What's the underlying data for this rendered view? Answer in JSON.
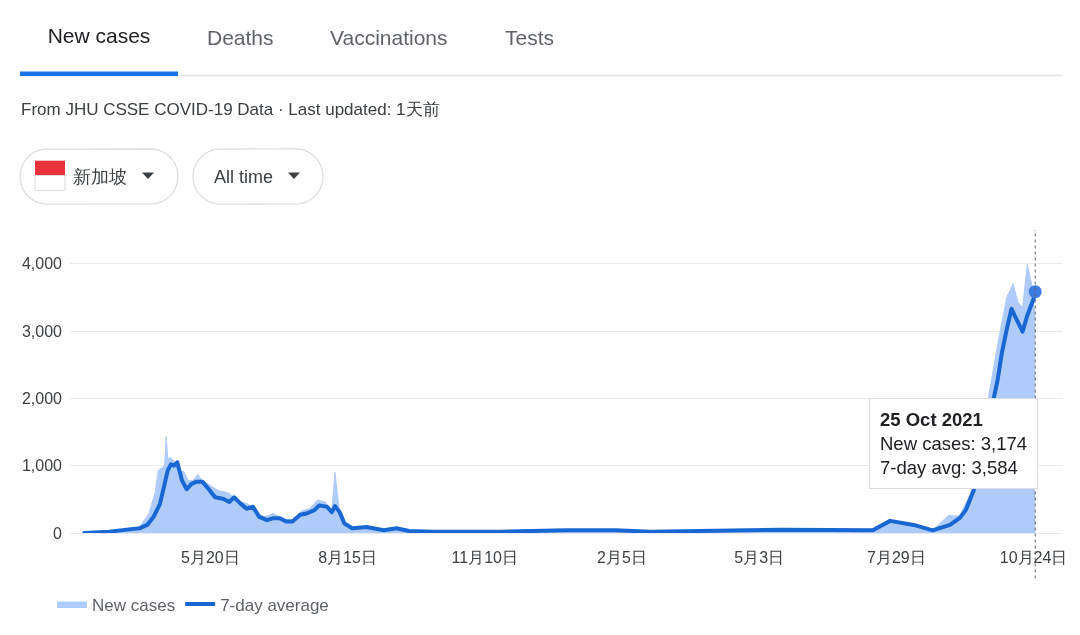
{
  "chart_data": {
    "type": "line",
    "title": "New cases",
    "subtitle": "From JHU CSSE COVID-19 Data · Last updated: 1天前",
    "annotations": [
      "Deaths",
      "Vaccinations",
      "Tests",
      "新加坡",
      "All time",
      "25 Oct 2021\nNew cases: 3,174\n7-day avg: 3,584"
    ],
    "series": [
      {
        "name": "New cases",
        "type": "area",
        "color": "#aecbfa",
        "x": [
          "2020-03-01",
          "2020-03-28",
          "2020-04-05",
          "2020-04-11",
          "2020-04-15",
          "2020-04-17",
          "2020-04-21",
          "2020-04-22",
          "2020-04-23",
          "2020-04-25",
          "2020-04-27",
          "2020-04-30",
          "2020-05-03",
          "2020-05-06",
          "2020-05-09",
          "2020-05-12",
          "2020-05-15",
          "2020-05-25",
          "2020-05-31",
          "2020-06-08",
          "2020-06-13",
          "2020-06-18",
          "2020-06-23",
          "2020-06-29",
          "2020-07-05",
          "2020-07-11",
          "2020-07-17",
          "2020-07-22",
          "2020-07-27",
          "2020-08-01",
          "2020-08-05",
          "2020-08-07",
          "2020-08-10",
          "2020-08-13",
          "2020-08-18",
          "2020-09-10",
          "2020-10-15",
          "2021-01-01",
          "2021-03-01",
          "2021-05-18",
          "2021-07-14",
          "2021-07-25",
          "2021-08-09",
          "2021-08-21",
          "2021-08-31",
          "2021-09-07",
          "2021-09-15",
          "2021-10-02",
          "2021-10-07",
          "2021-10-11",
          "2021-10-14",
          "2021-10-17",
          "2021-10-20",
          "2021-10-23",
          "2021-10-25"
        ],
        "values": [
          0,
          50,
          80,
          290,
          600,
          930,
          1000,
          1430,
          1100,
          1120,
          1070,
          920,
          920,
          780,
          780,
          870,
          780,
          630,
          600,
          460,
          430,
          310,
          240,
          290,
          210,
          190,
          330,
          360,
          490,
          460,
          310,
          900,
          290,
          120,
          80,
          40,
          10,
          30,
          20,
          40,
          30,
          180,
          100,
          40,
          260,
          250,
          640,
          2900,
          3500,
          3700,
          3430,
          3350,
          3990,
          3670,
          3174
        ]
      },
      {
        "name": "7-day average",
        "color": "#1967d2",
        "x": [
          "2020-03-01",
          "2020-03-17",
          "2020-03-28",
          "2020-04-05",
          "2020-04-10",
          "2020-04-14",
          "2020-04-18",
          "2020-04-21",
          "2020-04-23",
          "2020-04-25",
          "2020-04-27",
          "2020-04-29",
          "2020-05-02",
          "2020-05-05",
          "2020-05-08",
          "2020-05-11",
          "2020-05-15",
          "2020-05-19",
          "2020-05-23",
          "2020-05-28",
          "2020-06-01",
          "2020-06-04",
          "2020-06-08",
          "2020-06-12",
          "2020-06-16",
          "2020-06-20",
          "2020-06-25",
          "2020-06-29",
          "2020-07-03",
          "2020-07-07",
          "2020-07-11",
          "2020-07-16",
          "2020-07-20",
          "2020-07-25",
          "2020-07-28",
          "2020-08-02",
          "2020-08-05",
          "2020-08-07",
          "2020-08-10",
          "2020-08-13",
          "2020-08-18",
          "2020-08-27",
          "2020-09-07",
          "2020-09-15",
          "2020-09-23",
          "2020-10-08",
          "2020-11-20",
          "2021-01-01",
          "2021-02-01",
          "2021-02-23",
          "2021-03-26",
          "2021-05-18",
          "2021-07-14",
          "2021-07-25",
          "2021-08-09",
          "2021-08-21",
          "2021-09-01",
          "2021-09-07",
          "2021-09-11",
          "2021-09-16",
          "2021-10-01",
          "2021-10-04",
          "2021-10-07",
          "2021-10-10",
          "2021-10-13",
          "2021-10-17",
          "2021-10-20",
          "2021-10-24",
          "2021-10-25"
        ],
        "values": [
          0,
          20,
          50,
          70,
          120,
          240,
          430,
          730,
          930,
          1020,
          1000,
          1050,
          780,
          650,
          730,
          760,
          760,
          650,
          530,
          510,
          460,
          530,
          440,
          360,
          390,
          240,
          190,
          220,
          220,
          170,
          170,
          270,
          290,
          340,
          410,
          390,
          310,
          400,
          310,
          140,
          70,
          90,
          40,
          70,
          30,
          20,
          20,
          40,
          40,
          20,
          30,
          50,
          40,
          180,
          120,
          40,
          120,
          220,
          340,
          630,
          2250,
          2690,
          3030,
          3330,
          3180,
          2990,
          3230,
          3480,
          3584
        ]
      },
      {
        "type": "scatter",
        "color": "#3b7de0",
        "marker": "circle",
        "x": [
          "2021-10-25"
        ],
        "values": [
          3584
        ]
      }
    ],
    "xlim": [
      "2020-02-21",
      "2021-11-11"
    ],
    "xticks": [
      {
        "value": "2020-05-20",
        "label": "5月20日"
      },
      {
        "value": "2020-08-15",
        "label": "8月15日"
      },
      {
        "value": "2020-11-10",
        "label": "11月10日"
      },
      {
        "value": "2021-02-05",
        "label": "2月5日"
      },
      {
        "value": "2021-05-03",
        "label": "5月3日"
      },
      {
        "value": "2021-07-29",
        "label": "7月29日"
      },
      {
        "value": "2021-10-24",
        "label": "10月24日"
      }
    ],
    "ylim": [
      0,
      4500
    ],
    "yticks": [
      0,
      {
        "value": 1000,
        "label": "1,000"
      },
      {
        "value": 2000,
        "label": "2,000"
      },
      {
        "value": 3000,
        "label": "3,000"
      },
      {
        "value": 4000,
        "label": "4,000"
      }
    ],
    "ref_lines": [
      {
        "axis": "x",
        "value": "2021-10-25",
        "color": "#5f6368",
        "line_style": "dotted"
      }
    ],
    "grid": "y",
    "legend": "bottom left"
  }
}
